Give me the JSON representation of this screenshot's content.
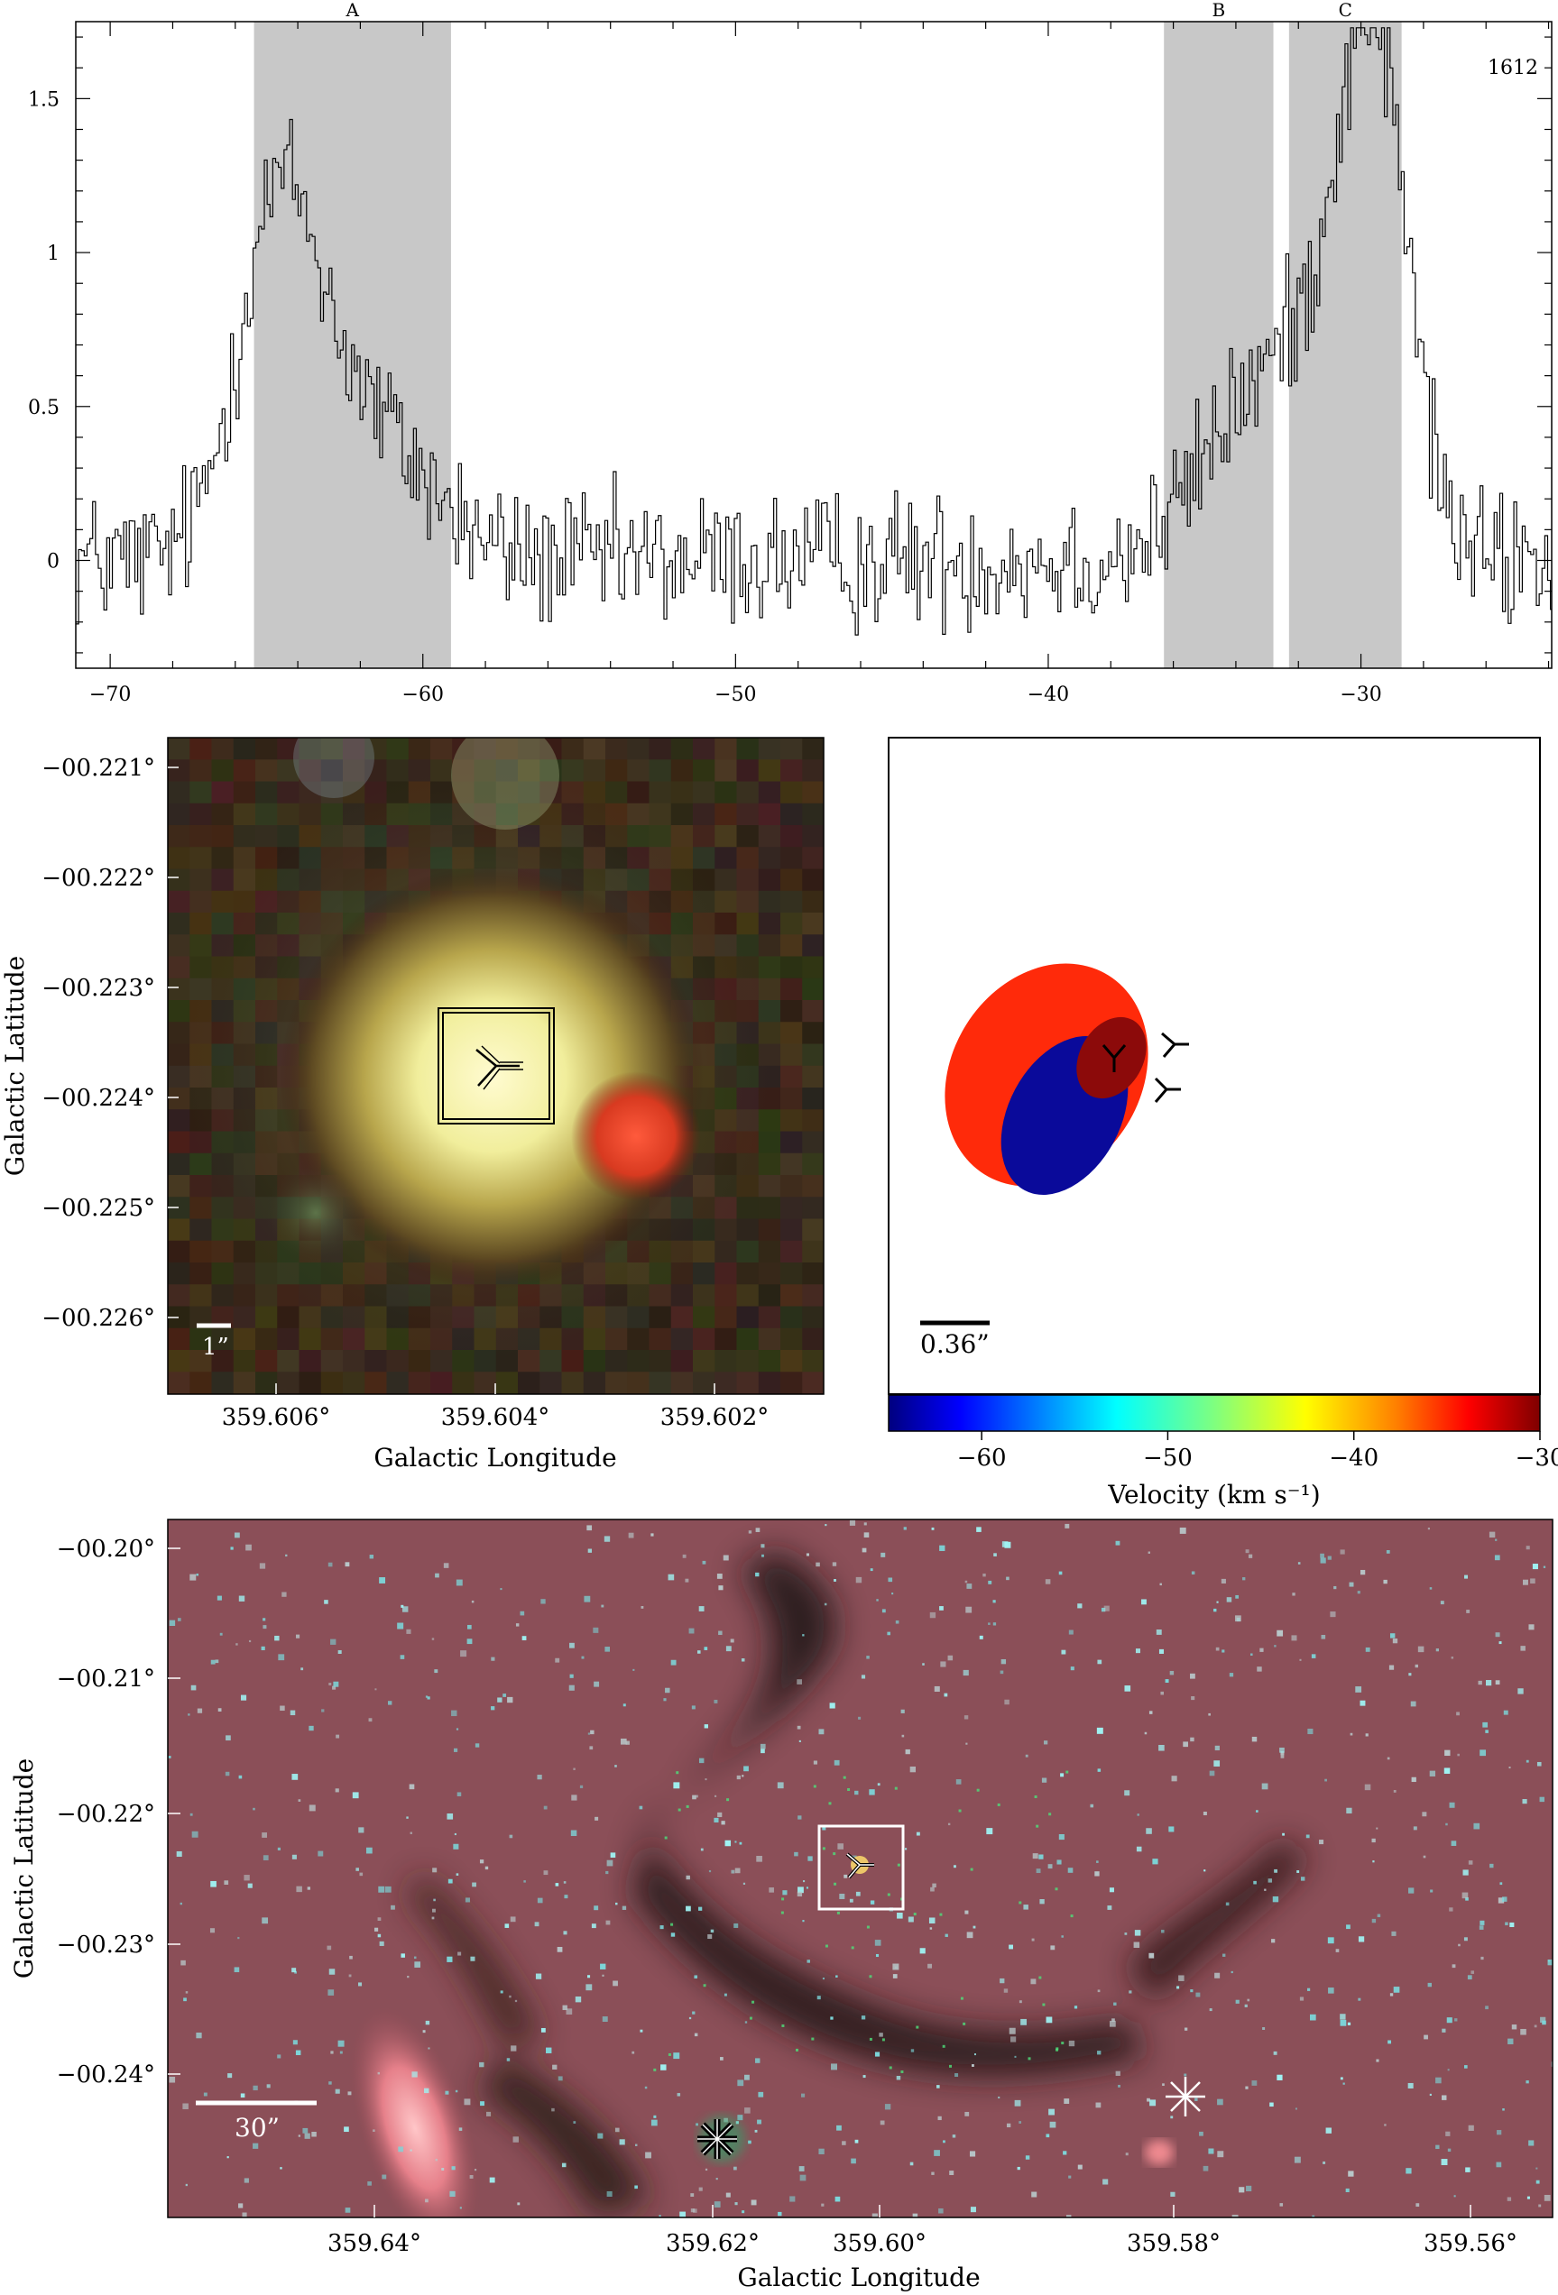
{
  "chart_data": [
    {
      "type": "line",
      "subtype": "step-spectrum",
      "panel_label": "1612",
      "xlim": [
        -71.1,
        -23.9
      ],
      "ylim": [
        -0.35,
        1.75
      ],
      "x_ticks": [
        -70,
        -60,
        -50,
        -40,
        -30
      ],
      "y_ticks": [
        0,
        0.5,
        1,
        1.5
      ],
      "x_tick_labels": [
        "−70",
        "−60",
        "−50",
        "−40",
        "−30"
      ],
      "y_tick_labels": [
        "0",
        "0.5",
        "1",
        "1.5"
      ],
      "shaded_regions": [
        {
          "label": "A",
          "x": [
            -65.4,
            -59.1
          ]
        },
        {
          "label": "B",
          "x": [
            -36.3,
            -32.8
          ]
        },
        {
          "label": "C",
          "x": [
            -32.3,
            -28.7
          ]
        }
      ],
      "features": [
        {
          "center": -64.7,
          "peak": 1.05,
          "sigma": 1.3
        },
        {
          "center": -62.0,
          "peak": 0.45,
          "sigma": 2.0
        },
        {
          "center": -34.0,
          "peak": 0.4,
          "sigma": 1.5
        },
        {
          "center": -29.6,
          "peak": 1.55,
          "sigma": 1.1
        },
        {
          "center": -31.5,
          "peak": 0.55,
          "sigma": 1.4
        }
      ],
      "noise_rms": 0.14,
      "channel_width": 0.09
    },
    {
      "type": "image",
      "title": "",
      "xlabel": "Galactic Longitude",
      "ylabel": "Galactic Latitude",
      "x_tick_labels": [
        "359.606°",
        "359.604°",
        "359.602°"
      ],
      "y_tick_labels": [
        "−00.221°",
        "−00.222°",
        "−00.223°",
        "−00.224°",
        "−00.225°",
        "−00.226°"
      ],
      "scale_bar_label": "1”"
    },
    {
      "type": "scatter",
      "xlabel": "",
      "ylabel": "",
      "colorbar_label": "Velocity (km s⁻¹)",
      "colorbar_ticks": [
        -60,
        -50,
        -40,
        -30
      ],
      "colorbar_tick_labels": [
        "−60",
        "−50",
        "−40",
        "−30"
      ],
      "colorbar_range": [
        -65,
        -30
      ],
      "scale_bar_label": "0.36”",
      "components": [
        {
          "velocity": -31.5,
          "color": "#ff2a0a"
        },
        {
          "velocity": -62.0,
          "color": "#0a0a9a"
        },
        {
          "velocity": -30.0,
          "color": "#8c0a0a"
        }
      ]
    },
    {
      "type": "image",
      "xlabel": "Galactic Longitude",
      "ylabel": "Galactic Latitude",
      "x_tick_labels": [
        "359.64°",
        "359.62°",
        "359.60°",
        "359.58°",
        "359.56°"
      ],
      "y_tick_labels": [
        "−00.20°",
        "−00.21°",
        "−00.22°",
        "−00.23°",
        "−00.24°"
      ],
      "scale_bar_label": "30”"
    }
  ],
  "colors": {
    "shade": "#c8c8c8",
    "bg_red": "#8a4e55",
    "star_cyan": "#7fe6e6",
    "colorbar": [
      "#00007f",
      "#0000ff",
      "#00ffff",
      "#7fff7f",
      "#ffff00",
      "#ff7f00",
      "#ff0000",
      "#7f0000"
    ]
  }
}
